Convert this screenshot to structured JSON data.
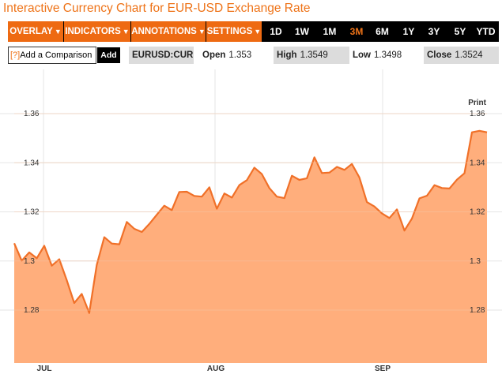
{
  "title": "Interactive Currency Chart for EUR-USD Exchange Rate",
  "menu": {
    "overlay": "OVERLAY",
    "indicators": "INDICATORS",
    "annotations": "ANNOTATIONS",
    "settings": "SETTINGS",
    "ranges": [
      "1D",
      "1W",
      "1M",
      "3M",
      "6M",
      "1Y",
      "3Y",
      "5Y",
      "YTD"
    ],
    "active_range": "3M"
  },
  "compare": {
    "help": "[?]",
    "value": "Add a Comparison",
    "button": "Add"
  },
  "quote": {
    "symbol": "EURUSD:CUR",
    "open_label": "Open",
    "open": "1.353",
    "high_label": "High",
    "high": "1.3549",
    "low_label": "Low",
    "low": "1.3498",
    "close_label": "Close",
    "close": "1.3524"
  },
  "print_label": "Print",
  "colors": {
    "accent": "#ee7318",
    "fill": "#ffae7c",
    "line": "#f07028"
  },
  "chart_data": {
    "type": "area",
    "ylim": [
      1.26,
      1.37
    ],
    "yticks": [
      1.28,
      1.3,
      1.32,
      1.34,
      1.36
    ],
    "ytick_labels": [
      "1.28",
      "1.3",
      "1.32",
      "1.34",
      "1.36"
    ],
    "xlabels": [
      "JUL",
      "AUG",
      "SEP"
    ],
    "grid": true,
    "values": [
      1.3072,
      1.3001,
      1.3035,
      1.3011,
      1.3062,
      1.2981,
      1.3007,
      1.2922,
      1.2829,
      1.2866,
      1.2788,
      1.2984,
      1.3097,
      1.3071,
      1.3068,
      1.3159,
      1.3131,
      1.3118,
      1.3151,
      1.3188,
      1.3225,
      1.3207,
      1.3281,
      1.3282,
      1.3265,
      1.3262,
      1.33,
      1.3213,
      1.3275,
      1.3258,
      1.3309,
      1.3329,
      1.338,
      1.3354,
      1.3297,
      1.3262,
      1.3256,
      1.3347,
      1.333,
      1.3337,
      1.3422,
      1.3358,
      1.336,
      1.3383,
      1.3371,
      1.3395,
      1.334,
      1.324,
      1.3222,
      1.3194,
      1.3175,
      1.321,
      1.3124,
      1.3173,
      1.3255,
      1.3266,
      1.3309,
      1.3297,
      1.3295,
      1.3331,
      1.3357,
      1.3524,
      1.353,
      1.3524
    ]
  }
}
